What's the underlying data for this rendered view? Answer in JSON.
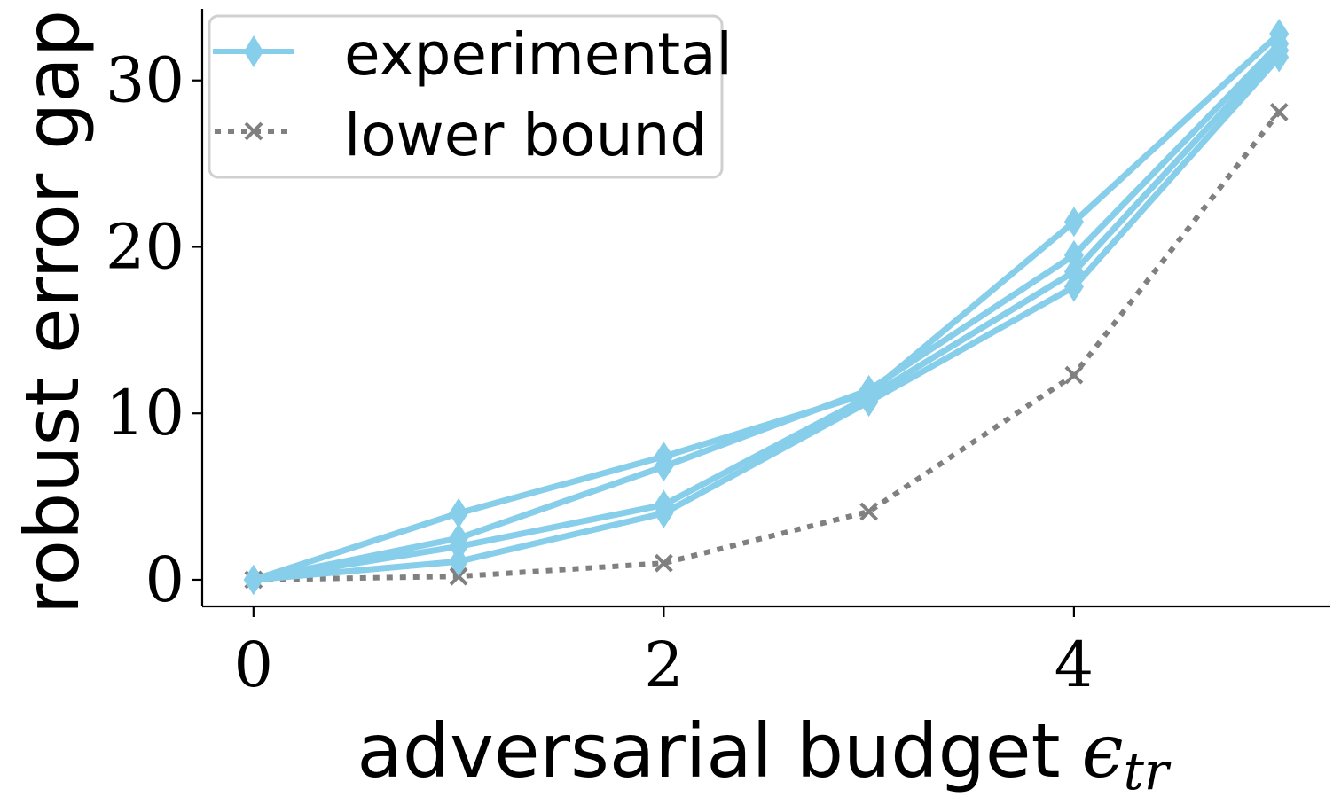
{
  "chart_data": {
    "type": "line",
    "xlabel": "adversarial budget",
    "xlabel_symbol": "ϵ",
    "xlabel_subscript": "tr",
    "ylabel": "robust error gap",
    "xlim": [
      -0.25,
      5.25
    ],
    "ylim": [
      -1.6,
      34.3
    ],
    "xticks": [
      0,
      2,
      4
    ],
    "yticks": [
      0,
      10,
      20,
      30
    ],
    "grid": false,
    "legend_position": "upper-left",
    "legend": [
      {
        "label": "experimental",
        "series": "experimental"
      },
      {
        "label": "lower bound",
        "series": "lower_bound"
      }
    ],
    "colors": {
      "experimental": "#87ceeb",
      "lower_bound": "#808080",
      "axis": "#000000",
      "legend_border": "#d0d0d0"
    },
    "x": [
      0,
      1,
      2,
      3,
      4,
      5
    ],
    "experimental_runs": [
      {
        "values": [
          0,
          4.0,
          7.4,
          11.2,
          21.5,
          32.8
        ]
      },
      {
        "values": [
          0,
          2.5,
          6.8,
          11.4,
          19.5,
          32.2
        ]
      },
      {
        "values": [
          0,
          2.0,
          4.5,
          11.0,
          18.5,
          31.8
        ]
      },
      {
        "values": [
          0,
          1.1,
          4.0,
          10.7,
          17.6,
          31.4
        ]
      }
    ],
    "lower_bound": {
      "values": [
        0,
        0.2,
        1.0,
        4.1,
        12.3,
        28.1
      ]
    }
  }
}
